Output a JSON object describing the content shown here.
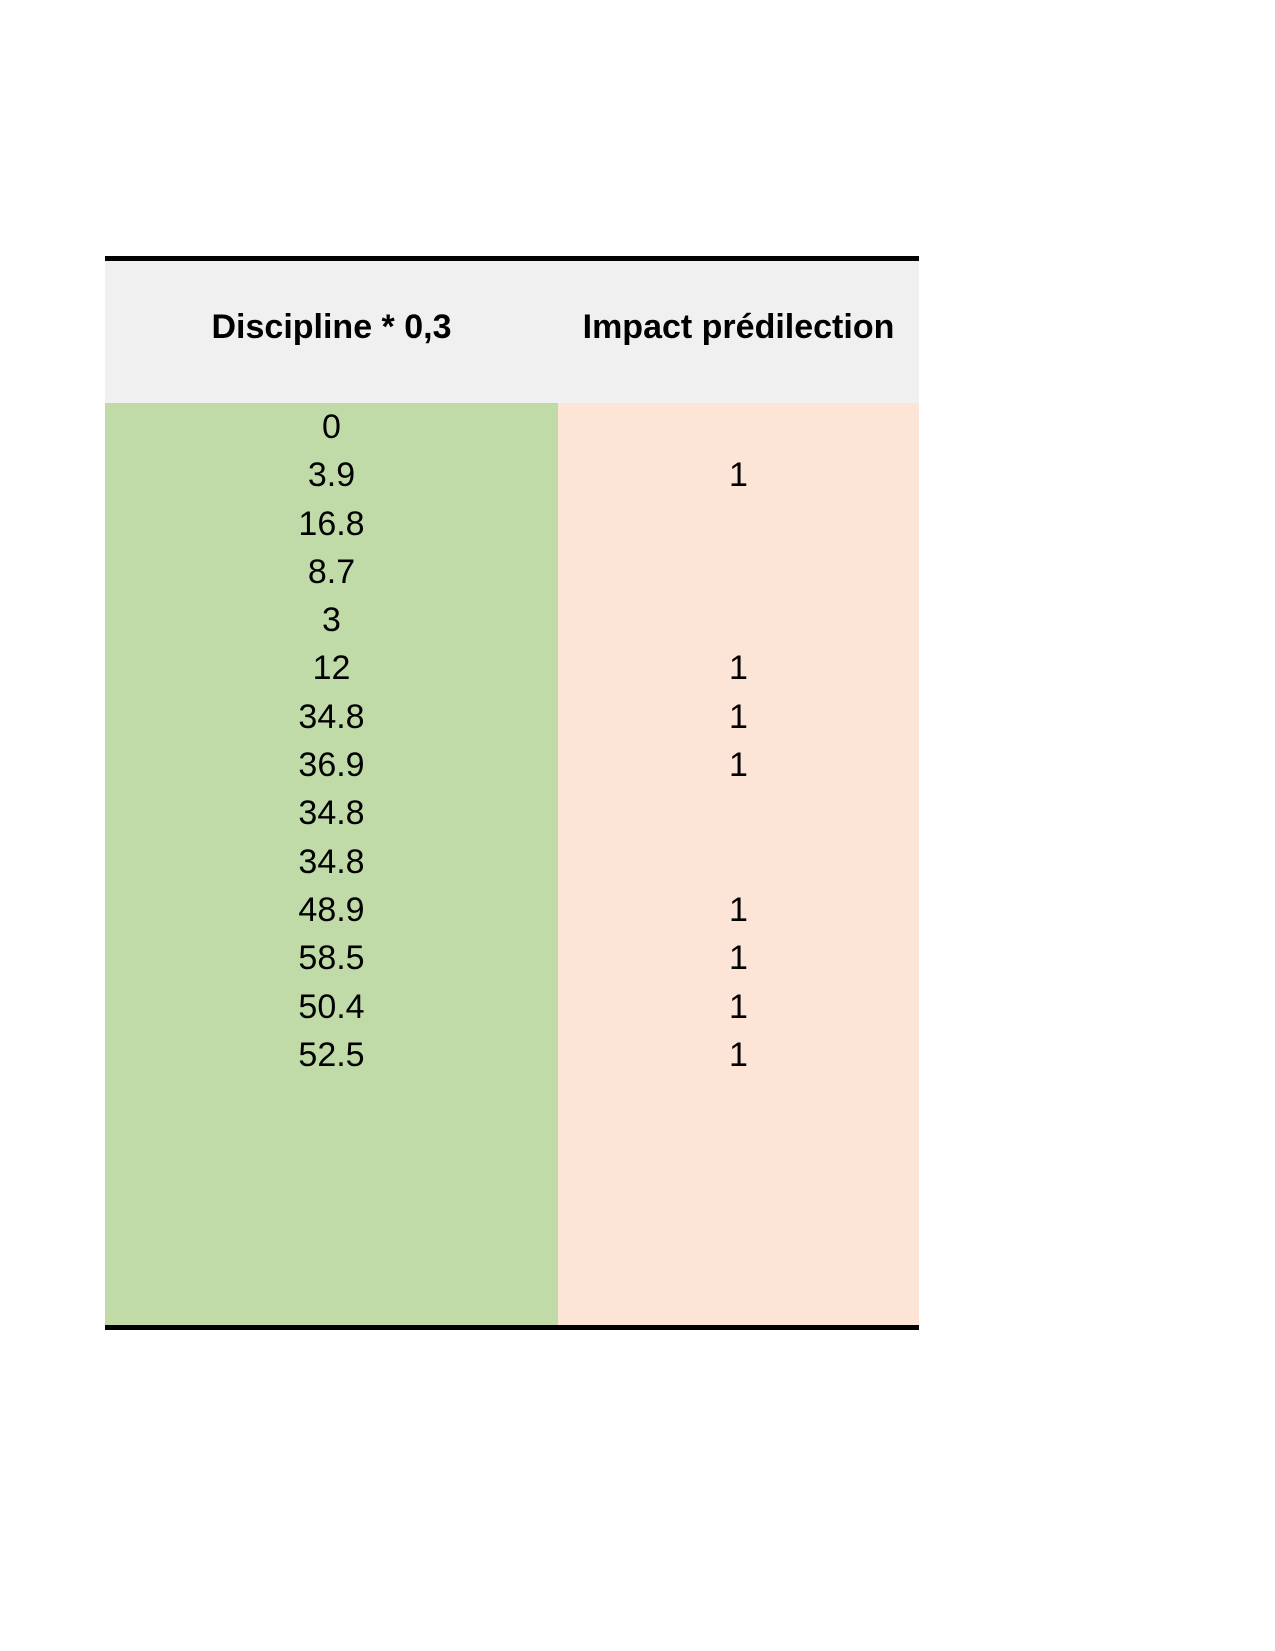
{
  "page": {
    "background_color": "#ffffff"
  },
  "table": {
    "border_color": "#000000",
    "header_background": "#f1f0f1",
    "text_color": "#000000",
    "columns": [
      {
        "id": "discipline",
        "label": "Discipline * 0,3",
        "fill": "#c0dba8"
      },
      {
        "id": "impact",
        "label": "Impact prédilection",
        "fill": "#fce4d6"
      }
    ],
    "rows": [
      {
        "discipline": "0",
        "impact": ""
      },
      {
        "discipline": "3.9",
        "impact": "1"
      },
      {
        "discipline": "16.8",
        "impact": ""
      },
      {
        "discipline": "8.7",
        "impact": ""
      },
      {
        "discipline": "3",
        "impact": ""
      },
      {
        "discipline": "12",
        "impact": "1"
      },
      {
        "discipline": "34.8",
        "impact": "1"
      },
      {
        "discipline": "36.9",
        "impact": "1"
      },
      {
        "discipline": "34.8",
        "impact": ""
      },
      {
        "discipline": "34.8",
        "impact": ""
      },
      {
        "discipline": "48.9",
        "impact": "1"
      },
      {
        "discipline": "58.5",
        "impact": "1"
      },
      {
        "discipline": "50.4",
        "impact": "1"
      },
      {
        "discipline": "52.5",
        "impact": "1"
      }
    ]
  },
  "chart_data": {
    "type": "table",
    "columns": [
      "Discipline * 0,3",
      "Impact prédilection"
    ],
    "rows": [
      [
        "0",
        ""
      ],
      [
        "3.9",
        "1"
      ],
      [
        "16.8",
        ""
      ],
      [
        "8.7",
        ""
      ],
      [
        "3",
        ""
      ],
      [
        "12",
        "1"
      ],
      [
        "34.8",
        "1"
      ],
      [
        "36.9",
        "1"
      ],
      [
        "34.8",
        ""
      ],
      [
        "34.8",
        ""
      ],
      [
        "48.9",
        "1"
      ],
      [
        "58.5",
        "1"
      ],
      [
        "50.4",
        "1"
      ],
      [
        "52.5",
        "1"
      ]
    ]
  }
}
